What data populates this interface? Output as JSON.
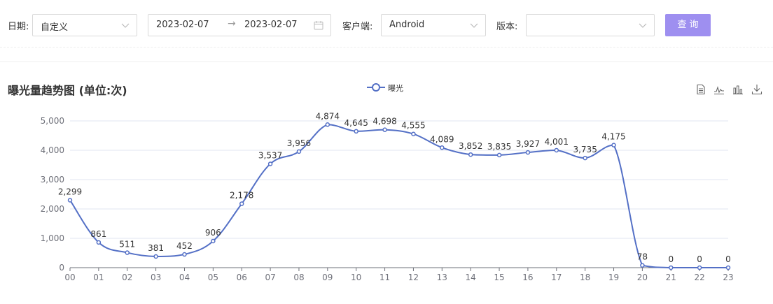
{
  "filters": {
    "date_label": "日期:",
    "date_type": "自定义",
    "start_date": "2023-02-07",
    "range_separator": "→",
    "end_date": "2023-02-07",
    "client_label": "客户端:",
    "client_value": "Android",
    "version_label": "版本:",
    "version_value": "",
    "query_button": "查询"
  },
  "icons": {
    "date_type": "chevron-down-icon",
    "calendar": "calendar-icon",
    "client": "chevron-down-icon",
    "version": "chevron-down-icon",
    "toolbox": [
      "data-view-icon",
      "line-chart-icon",
      "bar-chart-icon",
      "download-icon"
    ]
  },
  "colors": {
    "series": "#5470c6",
    "button": "#9e8ff0"
  },
  "chart_data": {
    "type": "line",
    "smooth": true,
    "title": "曝光量趋势图 (单位:次)",
    "legend_position": "top-center",
    "categories": [
      "00",
      "01",
      "02",
      "03",
      "04",
      "05",
      "06",
      "07",
      "08",
      "09",
      "10",
      "11",
      "12",
      "13",
      "14",
      "15",
      "16",
      "17",
      "18",
      "19",
      "20",
      "21",
      "22",
      "23"
    ],
    "series": [
      {
        "name": "曝光",
        "values": [
          2299,
          861,
          511,
          381,
          452,
          906,
          2178,
          3537,
          3956,
          4874,
          4645,
          4698,
          4555,
          4089,
          3852,
          3835,
          3927,
          4001,
          3735,
          4175,
          78,
          0,
          0,
          0
        ]
      }
    ],
    "y_ticks": [
      "0",
      "1,000",
      "2,000",
      "3,000",
      "4,000",
      "5,000"
    ],
    "ylim": [
      0,
      5000
    ],
    "grid": true
  }
}
